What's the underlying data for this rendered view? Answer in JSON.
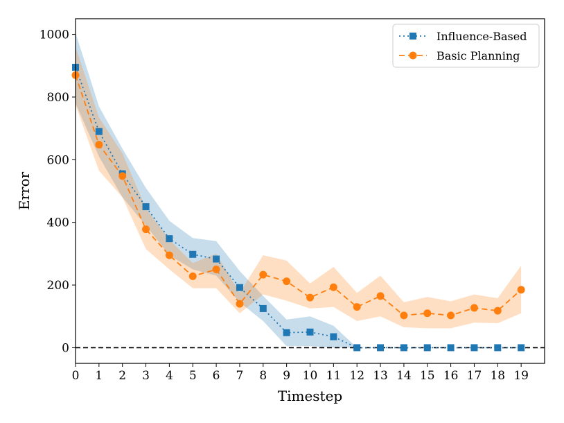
{
  "chart_data": {
    "type": "line",
    "xlabel": "Timestep",
    "ylabel": "Error",
    "xlim": [
      0,
      20
    ],
    "ylim": [
      -50,
      1050
    ],
    "x": [
      0,
      1,
      2,
      3,
      4,
      5,
      6,
      7,
      8,
      9,
      10,
      11,
      12,
      13,
      14,
      15,
      16,
      17,
      18,
      19
    ],
    "xticks": [
      0,
      1,
      2,
      3,
      4,
      5,
      6,
      7,
      8,
      9,
      10,
      11,
      12,
      13,
      14,
      15,
      16,
      17,
      18,
      19
    ],
    "yticks": [
      0,
      200,
      400,
      600,
      800,
      1000
    ],
    "grid": false,
    "legend_position": "top-right",
    "reference_line": {
      "y": 0,
      "style": "dashed",
      "color": "#000000"
    },
    "series": [
      {
        "name": "Influence-Based",
        "color": "#1f77b4",
        "line_style": "dotted",
        "marker": "square",
        "values": [
          895,
          690,
          555,
          450,
          348,
          298,
          283,
          192,
          125,
          48,
          50,
          35,
          0,
          0,
          0,
          0,
          0,
          0,
          0,
          0
        ],
        "band_low": [
          780,
          610,
          480,
          390,
          295,
          250,
          230,
          145,
          85,
          5,
          5,
          0,
          0,
          0,
          0,
          0,
          0,
          0,
          0,
          0
        ],
        "band_high": [
          1005,
          770,
          635,
          510,
          405,
          350,
          340,
          245,
          165,
          90,
          100,
          70,
          0,
          0,
          0,
          0,
          0,
          0,
          0,
          0
        ]
      },
      {
        "name": "Basic Planning",
        "color": "#ff7f0e",
        "line_style": "dashed",
        "marker": "circle",
        "values": [
          870,
          648,
          548,
          378,
          295,
          228,
          250,
          140,
          233,
          212,
          160,
          193,
          130,
          165,
          103,
          110,
          103,
          127,
          118,
          185
        ],
        "band_low": [
          775,
          565,
          480,
          315,
          250,
          190,
          190,
          110,
          170,
          150,
          125,
          130,
          85,
          100,
          65,
          62,
          62,
          80,
          78,
          110
        ],
        "band_high": [
          960,
          735,
          620,
          445,
          345,
          270,
          300,
          175,
          295,
          278,
          205,
          258,
          175,
          230,
          145,
          162,
          148,
          170,
          158,
          262
        ]
      }
    ]
  }
}
